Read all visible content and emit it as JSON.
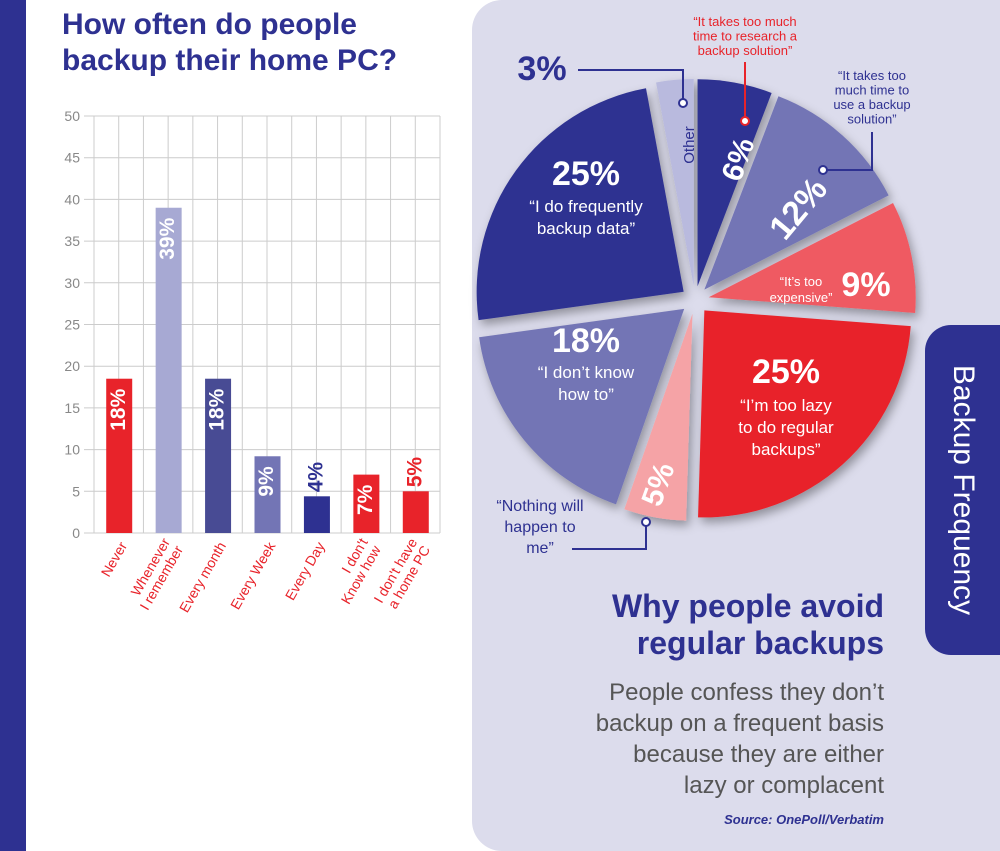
{
  "left_chart": {
    "title_lines": [
      "How often do people",
      "backup their home PC?"
    ]
  },
  "right_chart": {
    "title_lines": [
      "Why people avoid",
      "regular backups"
    ],
    "body_lines": [
      "People confess they don’t",
      "backup on a frequent basis",
      "because they are either",
      "lazy or complacent"
    ],
    "source": "Source: OnePoll/Verbatim",
    "tab_label": "Backup Frequency"
  },
  "colors": {
    "red": "#e8232a",
    "navy": "#2e3191",
    "lavender": "#a7a9d3",
    "slate": "#484b94",
    "periwinkle": "#7375b5",
    "salmon": "#ef5a62",
    "pink": "#f5a3a6",
    "light_lavender": "#b9bade",
    "grid": "#cccccc",
    "axis_text": "#888888",
    "bg_panel": "#dcdcec"
  },
  "chart_data": [
    {
      "type": "bar",
      "title": "How often do people backup their home PC?",
      "ylim": [
        0,
        50
      ],
      "yticks": [
        "0",
        "5",
        "10",
        "15",
        "20",
        "25",
        "30",
        "35",
        "40",
        "45",
        "50"
      ],
      "categories": [
        [
          "Never"
        ],
        [
          "Whenever",
          "I remember"
        ],
        [
          "Every month"
        ],
        [
          "Every Week"
        ],
        [
          "Every Day"
        ],
        [
          "I don't",
          "Know how"
        ],
        [
          "I don't have",
          "a home PC"
        ]
      ],
      "values": [
        18.5,
        39,
        18.5,
        9.2,
        4.4,
        7,
        5
      ],
      "labels": [
        "18%",
        "39%",
        "18%",
        "9%",
        "4%",
        "7%",
        "5%"
      ],
      "bar_colors": [
        "#e8232a",
        "#a7a9d3",
        "#484b94",
        "#7375b5",
        "#2e3191",
        "#e8232a",
        "#e8232a"
      ],
      "label_inside": [
        true,
        true,
        true,
        true,
        false,
        true,
        false
      ],
      "category_colors": [
        "#e8232a",
        "#e8232a",
        "#e8232a",
        "#e8232a",
        "#e8232a",
        "#e8232a",
        "#e8232a"
      ]
    },
    {
      "type": "pie",
      "title": "Why people avoid regular backups",
      "slices": [
        {
          "pct_label": "6%",
          "value": 6,
          "color": "#2e3191",
          "label_lines": [
            "“It takes too much",
            "time to research a",
            "backup solution”"
          ]
        },
        {
          "pct_label": "12%",
          "value": 12,
          "color": "#7375b5",
          "label_lines": [
            "“It takes too",
            "much time to",
            "use a backup",
            "solution”"
          ]
        },
        {
          "pct_label": "9%",
          "value": 9,
          "color": "#ef5a62",
          "label_lines": [
            "“It’s too",
            "expensive”"
          ]
        },
        {
          "pct_label": "25%",
          "value": 25,
          "color": "#e8232a",
          "label_lines": [
            "“I’m too lazy",
            "to do regular",
            "backups”"
          ]
        },
        {
          "pct_label": "5%",
          "value": 5,
          "color": "#f5a3a6",
          "label_lines": [
            "“Nothing will",
            "happen to",
            "me”"
          ]
        },
        {
          "pct_label": "18%",
          "value": 18,
          "color": "#7375b5",
          "label_lines": [
            "“I don’t know",
            "how to”"
          ]
        },
        {
          "pct_label": "25%",
          "value": 25,
          "color": "#2e3191",
          "label_lines": [
            "“I do frequently",
            "backup data”"
          ]
        },
        {
          "pct_label": "3%",
          "value": 3,
          "color": "#b9bade",
          "label_lines": [
            "Other"
          ]
        }
      ]
    }
  ]
}
